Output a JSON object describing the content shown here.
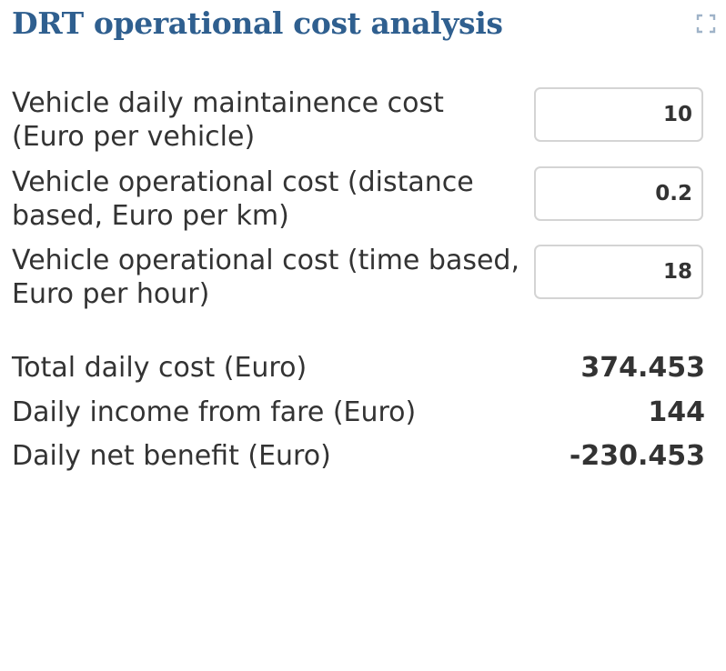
{
  "panel": {
    "title": "DRT operational cost analysis",
    "expand_icon": "expand-icon",
    "title_color": "#2f5f8f"
  },
  "inputs": [
    {
      "label": "Vehicle daily maintainence cost (Euro per vehicle)",
      "value": "10"
    },
    {
      "label": "Vehicle operational cost (distance based, Euro per km)",
      "value": "0.2"
    },
    {
      "label": "Vehicle operational cost (time based, Euro per hour)",
      "value": "18"
    }
  ],
  "results": [
    {
      "label": "Total daily cost (Euro)",
      "value": "374.453"
    },
    {
      "label": "Daily income from fare (Euro)",
      "value": "144"
    },
    {
      "label": "Daily net benefit (Euro)",
      "value": "-230.453"
    }
  ]
}
